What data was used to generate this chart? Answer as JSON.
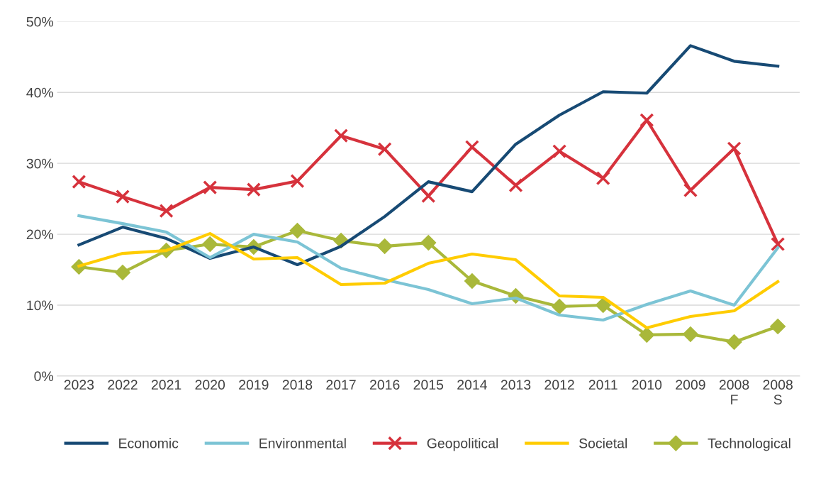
{
  "chart_data": {
    "type": "line",
    "categories": [
      "2023",
      "2022",
      "2021",
      "2020",
      "2019",
      "2018",
      "2017",
      "2016",
      "2015",
      "2014",
      "2013",
      "2012",
      "2011",
      "2010",
      "2009",
      "2008\nF",
      "2008\nS"
    ],
    "ylim": [
      0,
      50
    ],
    "yticks": [
      {
        "value": 0,
        "label": "0%"
      },
      {
        "value": 10,
        "label": "10%"
      },
      {
        "value": 20,
        "label": "20%"
      },
      {
        "value": 30,
        "label": "30%"
      },
      {
        "value": 40,
        "label": "40%"
      },
      {
        "value": 50,
        "label": "50%"
      }
    ],
    "grid": "y",
    "legend": "bottom",
    "series": [
      {
        "name": "Economic",
        "color": "#174a74",
        "marker": "none",
        "values": [
          18.5,
          21.0,
          19.4,
          16.6,
          18.2,
          15.7,
          18.3,
          22.5,
          27.4,
          26.0,
          32.7,
          36.8,
          40.1,
          39.9,
          46.6,
          44.4,
          43.7
        ]
      },
      {
        "name": "Environmental",
        "color": "#7cc4d5",
        "marker": "none",
        "values": [
          22.6,
          21.5,
          20.3,
          16.7,
          20.0,
          18.9,
          15.2,
          13.6,
          12.2,
          10.2,
          11.0,
          8.6,
          7.9,
          10.1,
          12.0,
          10.0,
          18.1
        ]
      },
      {
        "name": "Geopolitical",
        "color": "#d6323c",
        "marker": "cross",
        "values": [
          27.4,
          25.3,
          23.3,
          26.6,
          26.3,
          27.5,
          33.9,
          32.0,
          25.4,
          32.3,
          26.9,
          31.7,
          27.9,
          36.1,
          26.2,
          32.1,
          18.6
        ]
      },
      {
        "name": "Societal",
        "color": "#ffcc00",
        "marker": "none",
        "values": [
          15.5,
          17.3,
          17.7,
          20.1,
          16.5,
          16.7,
          12.9,
          13.1,
          15.9,
          17.2,
          16.4,
          11.3,
          11.1,
          6.8,
          8.4,
          9.2,
          13.3
        ]
      },
      {
        "name": "Technological",
        "color": "#a9b83a",
        "marker": "diamond",
        "values": [
          15.4,
          14.6,
          17.7,
          18.6,
          18.2,
          20.5,
          19.1,
          18.3,
          18.8,
          13.4,
          11.3,
          9.8,
          10.0,
          5.8,
          5.9,
          4.8,
          7.0
        ]
      }
    ]
  }
}
